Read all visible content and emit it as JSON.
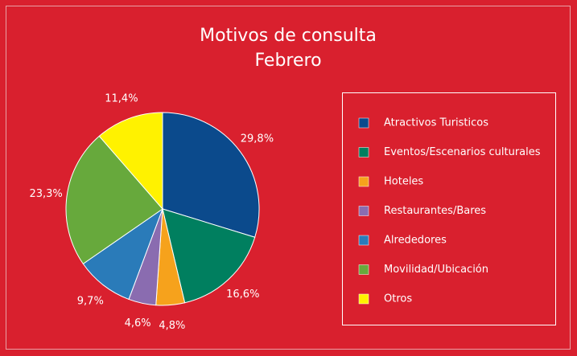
{
  "chart_data": {
    "type": "pie",
    "title": "Motivos de consulta",
    "subtitle": "Febrero",
    "categories": [
      "Atractivos Turisticos",
      "Eventos/Escenarios culturales",
      "Hoteles",
      "Restaurantes/Bares",
      "Alrededores",
      "Movilidad/Ubicación",
      "Otros"
    ],
    "values": [
      29.8,
      16.6,
      4.8,
      4.6,
      9.7,
      23.3,
      11.4
    ],
    "value_labels": [
      "29,8%",
      "16,6%",
      "4,8%",
      "4,6%",
      "9,7%",
      "23,3%",
      "11,4%"
    ],
    "colors": [
      "#0b4a8c",
      "#007f5f",
      "#f6a21c",
      "#8a6cb0",
      "#2a7bb9",
      "#67a93c",
      "#fff200"
    ],
    "legend": "right"
  }
}
